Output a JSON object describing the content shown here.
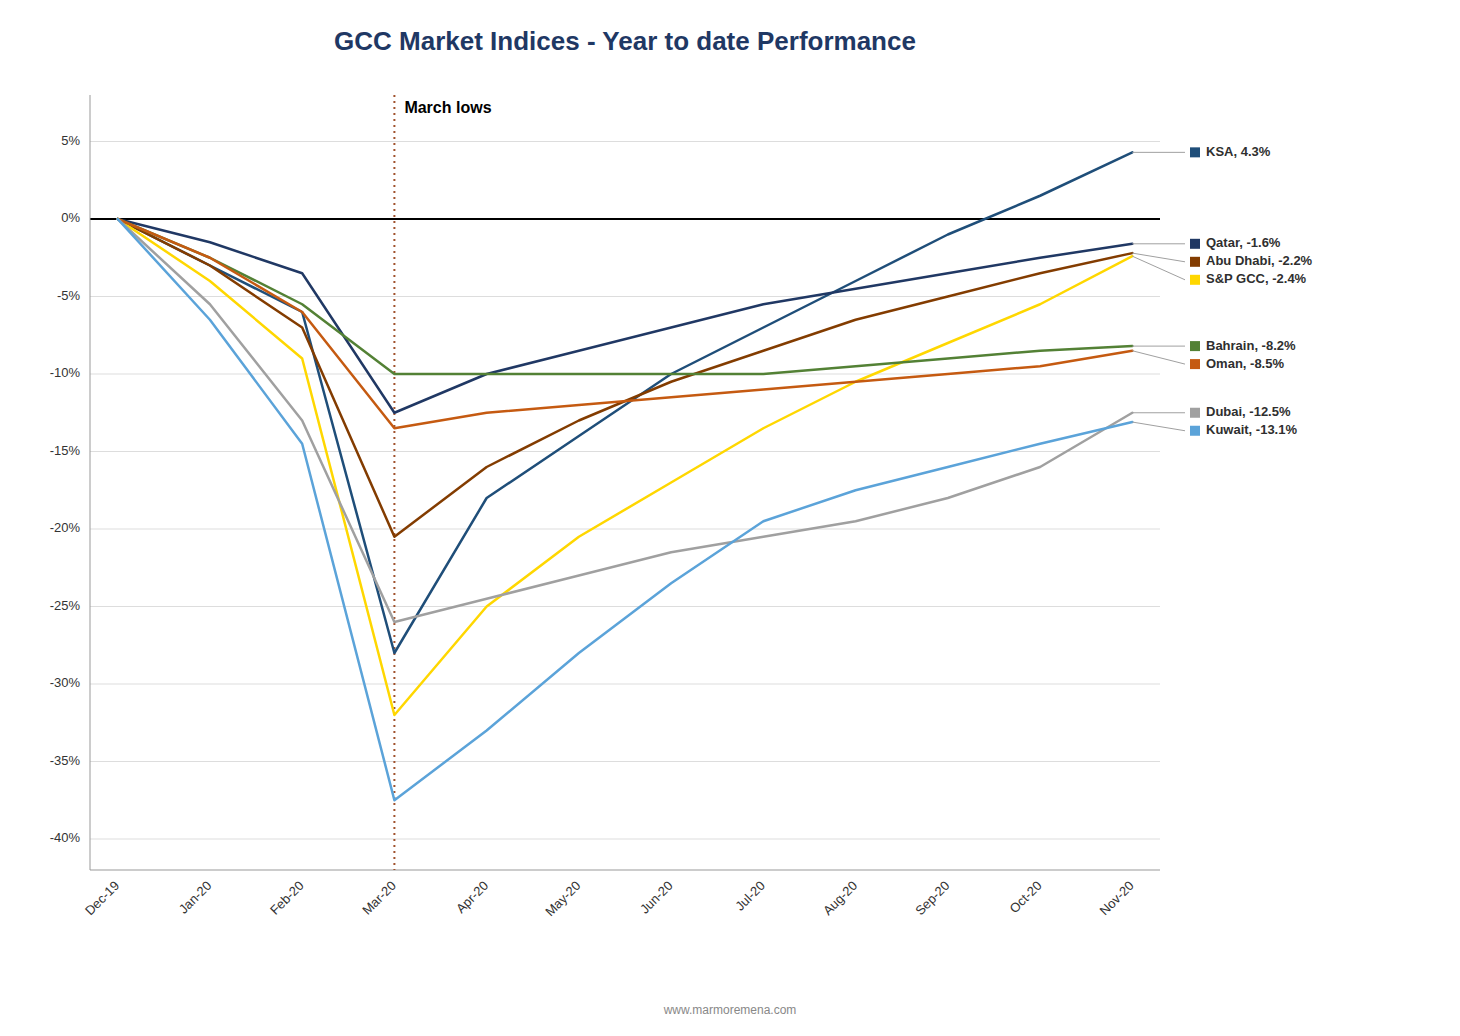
{
  "chart_data": {
    "type": "line",
    "title": "GCC Market Indices - Year to date Performance",
    "annotations": [
      {
        "text": "March lows",
        "x": "Mar-20"
      }
    ],
    "source": "www.marmoremena.com",
    "categories": [
      "Dec-19",
      "Jan-20",
      "Feb-20",
      "Mar-20",
      "Apr-20",
      "May-20",
      "Jun-20",
      "Jul-20",
      "Aug-20",
      "Sep-20",
      "Oct-20",
      "Nov-20"
    ],
    "series": [
      {
        "name": "KSA, 4.3%",
        "color": "#1F4E79",
        "values": [
          0,
          -3.0,
          -6.0,
          -28.0,
          -18.0,
          -14.0,
          -10.0,
          -7.0,
          -4.0,
          -1.0,
          1.5,
          4.3
        ]
      },
      {
        "name": "Qatar, -1.6%",
        "color": "#203864",
        "values": [
          0,
          -1.5,
          -3.5,
          -12.5,
          -10.0,
          -8.5,
          -7.0,
          -5.5,
          -4.5,
          -3.5,
          -2.5,
          -1.6
        ]
      },
      {
        "name": "Abu Dhabi, -2.2%",
        "color": "#833C00",
        "values": [
          0,
          -3.0,
          -7.0,
          -20.5,
          -16.0,
          -13.0,
          -10.5,
          -8.5,
          -6.5,
          -5.0,
          -3.5,
          -2.2
        ]
      },
      {
        "name": "S&P GCC, -2.4%",
        "color": "#FFD700",
        "values": [
          0,
          -4.0,
          -9.0,
          -32.0,
          -25.0,
          -20.5,
          -17.0,
          -13.5,
          -10.5,
          -8.0,
          -5.5,
          -2.4
        ]
      },
      {
        "name": "Bahrain, -8.2%",
        "color": "#538135",
        "values": [
          0,
          -2.5,
          -5.5,
          -10.0,
          -10.0,
          -10.0,
          -10.0,
          -10.0,
          -9.5,
          -9.0,
          -8.5,
          -8.2
        ]
      },
      {
        "name": "Oman, -8.5%",
        "color": "#C55A11",
        "values": [
          0,
          -2.5,
          -6.0,
          -13.5,
          -12.5,
          -12.0,
          -11.5,
          -11.0,
          -10.5,
          -10.0,
          -9.5,
          -8.5
        ]
      },
      {
        "name": "Dubai, -12.5%",
        "color": "#A0A0A0",
        "values": [
          0,
          -5.5,
          -13.0,
          -26.0,
          -24.5,
          -23.0,
          -21.5,
          -20.5,
          -19.5,
          -18.0,
          -16.0,
          -12.5
        ]
      },
      {
        "name": "Kuwait, -13.1%",
        "color": "#5BA3D9",
        "values": [
          0,
          -6.5,
          -14.5,
          -37.5,
          -33.0,
          -28.0,
          -23.5,
          -19.5,
          -17.5,
          -16.0,
          -14.5,
          -13.1
        ]
      }
    ],
    "ylim": [
      -42,
      8
    ],
    "yticks": [
      {
        "value": 5,
        "label": "5%"
      },
      {
        "value": 0,
        "label": "0%"
      },
      {
        "value": -5,
        "label": "-5%"
      },
      {
        "value": -10,
        "label": "-10%"
      },
      {
        "value": -15,
        "label": "-15%"
      },
      {
        "value": -20,
        "label": "-20%"
      },
      {
        "value": -25,
        "label": "-25%"
      },
      {
        "value": -30,
        "label": "-30%"
      },
      {
        "value": -35,
        "label": "-35%"
      },
      {
        "value": -40,
        "label": "-40%"
      }
    ],
    "grid": true,
    "legend": "right"
  }
}
